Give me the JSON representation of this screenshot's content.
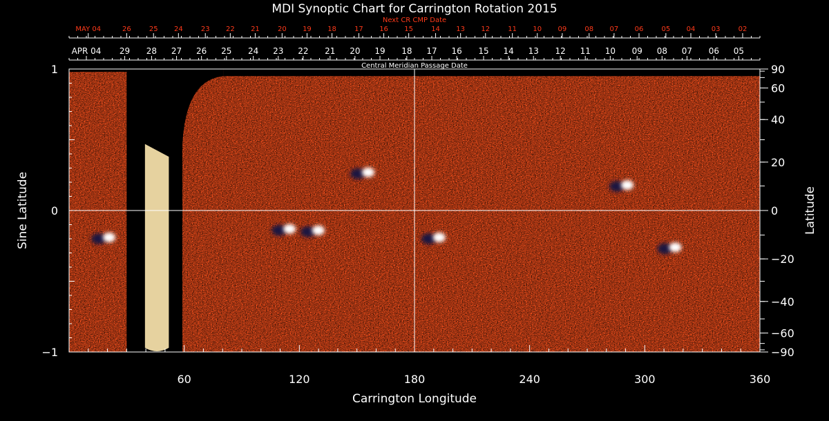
{
  "chart_data": {
    "type": "heatmap",
    "title": "MDI Synoptic Chart for Carrington Rotation 2015",
    "xlabel": "Carrington Longitude",
    "ylabel_left": "Sine Latitude",
    "ylabel_right": "Latitude",
    "top_red_caption": "Next CR CMP Date",
    "top_white_caption": "Central Meridian Passage Date",
    "xlim": [
      0,
      360
    ],
    "ylim": [
      -1,
      1
    ],
    "x_ticks": [
      60,
      120,
      180,
      240,
      300,
      360
    ],
    "y_ticks_left": [
      {
        "value": 1,
        "label": "1"
      },
      {
        "value": 0,
        "label": "0"
      },
      {
        "value": -1,
        "label": "−1"
      }
    ],
    "lat_ticks_right": [
      {
        "lat": 90,
        "label": "90"
      },
      {
        "lat": 60,
        "label": "60"
      },
      {
        "lat": 40,
        "label": "40"
      },
      {
        "lat": 20,
        "label": "20"
      },
      {
        "lat": 0,
        "label": "0"
      },
      {
        "lat": -20,
        "label": "−20"
      },
      {
        "lat": -40,
        "label": "−40"
      },
      {
        "lat": -60,
        "label": "−60"
      },
      {
        "lat": -90,
        "label": "−90"
      }
    ],
    "red_dates": [
      {
        "lon": 10,
        "label": "MAY 04"
      },
      {
        "lon": 30,
        "label": "26"
      },
      {
        "lon": 44,
        "label": "25"
      },
      {
        "lon": 57,
        "label": "24"
      },
      {
        "lon": 71,
        "label": "23"
      },
      {
        "lon": 84,
        "label": "22"
      },
      {
        "lon": 97,
        "label": "21"
      },
      {
        "lon": 111,
        "label": "20"
      },
      {
        "lon": 124,
        "label": "19"
      },
      {
        "lon": 137,
        "label": "18"
      },
      {
        "lon": 151,
        "label": "17"
      },
      {
        "lon": 164,
        "label": "16"
      },
      {
        "lon": 177,
        "label": "15"
      },
      {
        "lon": 191,
        "label": "14"
      },
      {
        "lon": 204,
        "label": "13"
      },
      {
        "lon": 217,
        "label": "12"
      },
      {
        "lon": 231,
        "label": "11"
      },
      {
        "lon": 244,
        "label": "10"
      },
      {
        "lon": 257,
        "label": "09"
      },
      {
        "lon": 271,
        "label": "08"
      },
      {
        "lon": 284,
        "label": "07"
      },
      {
        "lon": 297,
        "label": "06"
      },
      {
        "lon": 311,
        "label": "05"
      },
      {
        "lon": 324,
        "label": "04"
      },
      {
        "lon": 337,
        "label": "03"
      },
      {
        "lon": 351,
        "label": "02"
      }
    ],
    "white_dates": [
      {
        "lon": 9,
        "label": "APR 04"
      },
      {
        "lon": 29,
        "label": "29"
      },
      {
        "lon": 43,
        "label": "28"
      },
      {
        "lon": 56,
        "label": "27"
      },
      {
        "lon": 69,
        "label": "26"
      },
      {
        "lon": 82,
        "label": "25"
      },
      {
        "lon": 96,
        "label": "24"
      },
      {
        "lon": 109,
        "label": "23"
      },
      {
        "lon": 122,
        "label": "22"
      },
      {
        "lon": 136,
        "label": "21"
      },
      {
        "lon": 149,
        "label": "20"
      },
      {
        "lon": 162,
        "label": "19"
      },
      {
        "lon": 176,
        "label": "18"
      },
      {
        "lon": 189,
        "label": "17"
      },
      {
        "lon": 202,
        "label": "16"
      },
      {
        "lon": 216,
        "label": "15"
      },
      {
        "lon": 229,
        "label": "14"
      },
      {
        "lon": 242,
        "label": "13"
      },
      {
        "lon": 256,
        "label": "12"
      },
      {
        "lon": 269,
        "label": "11"
      },
      {
        "lon": 282,
        "label": "10"
      },
      {
        "lon": 296,
        "label": "09"
      },
      {
        "lon": 309,
        "label": "08"
      },
      {
        "lon": 322,
        "label": "07"
      },
      {
        "lon": 336,
        "label": "06"
      },
      {
        "lon": 349,
        "label": "05"
      }
    ],
    "colormap": [
      "#000000",
      "#1a1440",
      "#3b2a6e",
      "#d6391a",
      "#f24f1c",
      "#ff6a22",
      "#ffa54a",
      "#ffe9b0",
      "#ffffff"
    ],
    "background_color": "#000000",
    "frame_color": "#ffffff",
    "red_label_color": "#ff3a1a",
    "data_gaps_lon": [
      [
        30.5,
        39.5
      ],
      [
        52,
        59
      ]
    ],
    "active_regions": [
      {
        "lon": 112,
        "sinlat": -0.14,
        "polarity": "mixed"
      },
      {
        "lon": 127,
        "sinlat": -0.15,
        "polarity": "mixed"
      },
      {
        "lon": 153,
        "sinlat": 0.26,
        "polarity": "mixed"
      },
      {
        "lon": 288,
        "sinlat": 0.17,
        "polarity": "mixed"
      },
      {
        "lon": 313,
        "sinlat": -0.27,
        "polarity": "mixed"
      },
      {
        "lon": 18,
        "sinlat": -0.2,
        "polarity": "mixed"
      },
      {
        "lon": 190,
        "sinlat": -0.2,
        "polarity": "mixed"
      }
    ]
  }
}
